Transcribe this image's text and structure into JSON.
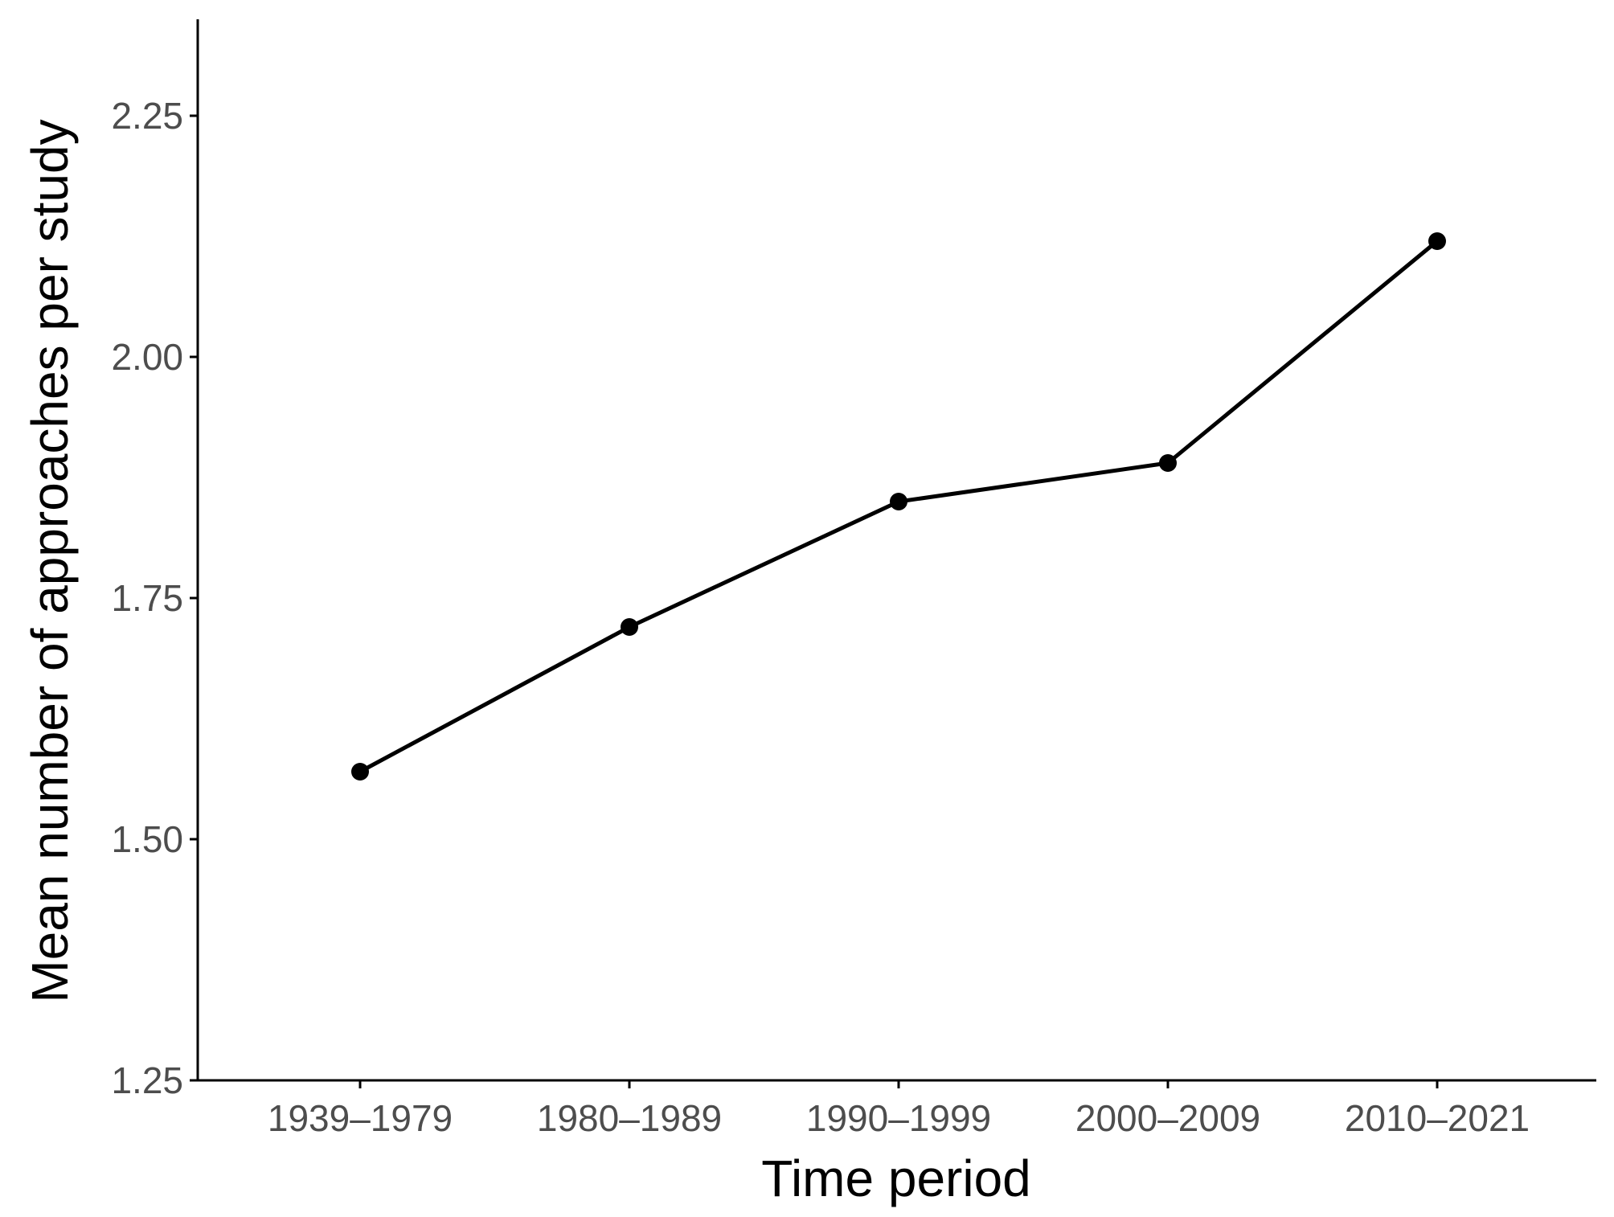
{
  "chart_data": {
    "type": "line",
    "title": "",
    "xlabel": "Time period",
    "ylabel": "Mean number of approaches per study",
    "categories": [
      "1939–1979",
      "1980–1989",
      "1990–1999",
      "2000–2009",
      "2010–2021"
    ],
    "series": [
      {
        "values": [
          1.57,
          1.72,
          1.85,
          1.89,
          2.12
        ]
      }
    ],
    "ylim": [
      1.25,
      2.35
    ],
    "yticks": [
      1.25,
      1.5,
      1.75,
      2.0,
      2.25
    ],
    "ytick_labels": [
      "1.25",
      "1.50",
      "1.75",
      "2.00",
      "2.25"
    ],
    "grid": false,
    "legend": "none",
    "colors": {
      "line": "#000000",
      "tick_label": "#4d4d4d"
    }
  }
}
